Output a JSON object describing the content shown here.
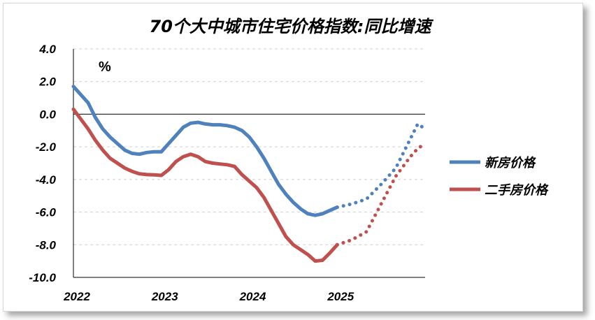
{
  "chart_data": {
    "type": "line",
    "title": "70个大中城市住宅价格指数:同比增速",
    "unit_label": "%",
    "ylim": [
      -10.0,
      4.0
    ],
    "yticks": [
      "4.0",
      "2.0",
      "0.0",
      "-2.0",
      "-4.0",
      "-6.0",
      "-8.0",
      "-10.0"
    ],
    "ytick_values": [
      4,
      2,
      0,
      -2,
      -4,
      -6,
      -8,
      -10
    ],
    "xlim": [
      0,
      48
    ],
    "xticks": [
      "2022",
      "2023",
      "2024",
      "2025"
    ],
    "xtick_values": [
      0,
      12,
      24,
      36
    ],
    "legend_position": "right",
    "series": [
      {
        "name": "新房价格",
        "color": "#4f81bd",
        "x": [
          0,
          1,
          2,
          3,
          4,
          5,
          6,
          7,
          8,
          9,
          10,
          11,
          12,
          13,
          14,
          15,
          16,
          17,
          18,
          19,
          20,
          21,
          22,
          23,
          24,
          25,
          26,
          27,
          28,
          29,
          30,
          31,
          32,
          33,
          34,
          35,
          36
        ],
        "values": [
          1.7,
          1.2,
          0.7,
          -0.2,
          -0.9,
          -1.4,
          -1.8,
          -2.2,
          -2.4,
          -2.45,
          -2.35,
          -2.3,
          -2.3,
          -1.8,
          -1.3,
          -0.8,
          -0.55,
          -0.5,
          -0.6,
          -0.65,
          -0.65,
          -0.7,
          -0.8,
          -1.0,
          -1.4,
          -2.0,
          -2.7,
          -3.5,
          -4.3,
          -4.9,
          -5.4,
          -5.8,
          -6.1,
          -6.2,
          -6.1,
          -5.9,
          -5.7
        ],
        "forecast_x": [
          36,
          38,
          40,
          42,
          44,
          46,
          47,
          48
        ],
        "forecast_values": [
          -5.7,
          -5.5,
          -5.2,
          -4.3,
          -3.3,
          -1.5,
          -0.6,
          -0.9
        ]
      },
      {
        "name": "二手房价格",
        "color": "#c0504d",
        "x": [
          0,
          1,
          2,
          3,
          4,
          5,
          6,
          7,
          8,
          9,
          10,
          11,
          12,
          13,
          14,
          15,
          16,
          17,
          18,
          19,
          20,
          21,
          22,
          23,
          24,
          25,
          26,
          27,
          28,
          29,
          30,
          31,
          32,
          33,
          34,
          35,
          36
        ],
        "values": [
          0.3,
          -0.3,
          -0.9,
          -1.6,
          -2.2,
          -2.7,
          -3.0,
          -3.3,
          -3.5,
          -3.65,
          -3.7,
          -3.72,
          -3.75,
          -3.4,
          -2.9,
          -2.6,
          -2.45,
          -2.6,
          -2.9,
          -3.0,
          -3.05,
          -3.1,
          -3.2,
          -3.7,
          -4.1,
          -4.5,
          -5.1,
          -5.9,
          -6.7,
          -7.5,
          -8.0,
          -8.3,
          -8.6,
          -9.0,
          -8.95,
          -8.5,
          -8.0
        ],
        "forecast_x": [
          36,
          38,
          40,
          42,
          44,
          46,
          47,
          48
        ],
        "forecast_values": [
          -8.0,
          -7.7,
          -7.2,
          -5.5,
          -3.8,
          -2.6,
          -2.1,
          -1.8
        ]
      }
    ]
  }
}
